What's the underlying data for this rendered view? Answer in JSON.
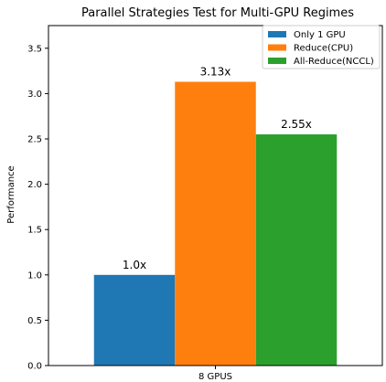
{
  "chart_data": {
    "type": "bar",
    "title": "Parallel Strategies Test for Multi-GPU Regimes",
    "xlabel": "",
    "ylabel": "Performance",
    "categories": [
      "8 GPUS"
    ],
    "ylim": [
      0,
      3.75
    ],
    "yticks": [
      "0.0",
      "0.5",
      "1.0",
      "1.5",
      "2.0",
      "2.5",
      "3.0",
      "3.5"
    ],
    "grid": false,
    "legend_position": "top-right",
    "series": [
      {
        "name": "Only 1 GPU",
        "values": [
          1.0
        ],
        "label": "1.0x",
        "color": "#1f77b4"
      },
      {
        "name": "Reduce(CPU)",
        "values": [
          3.13
        ],
        "label": "3.13x",
        "color": "#ff7f0e"
      },
      {
        "name": "All-Reduce(NCCL)",
        "values": [
          2.55
        ],
        "label": "2.55x",
        "color": "#2ca02c"
      }
    ]
  }
}
